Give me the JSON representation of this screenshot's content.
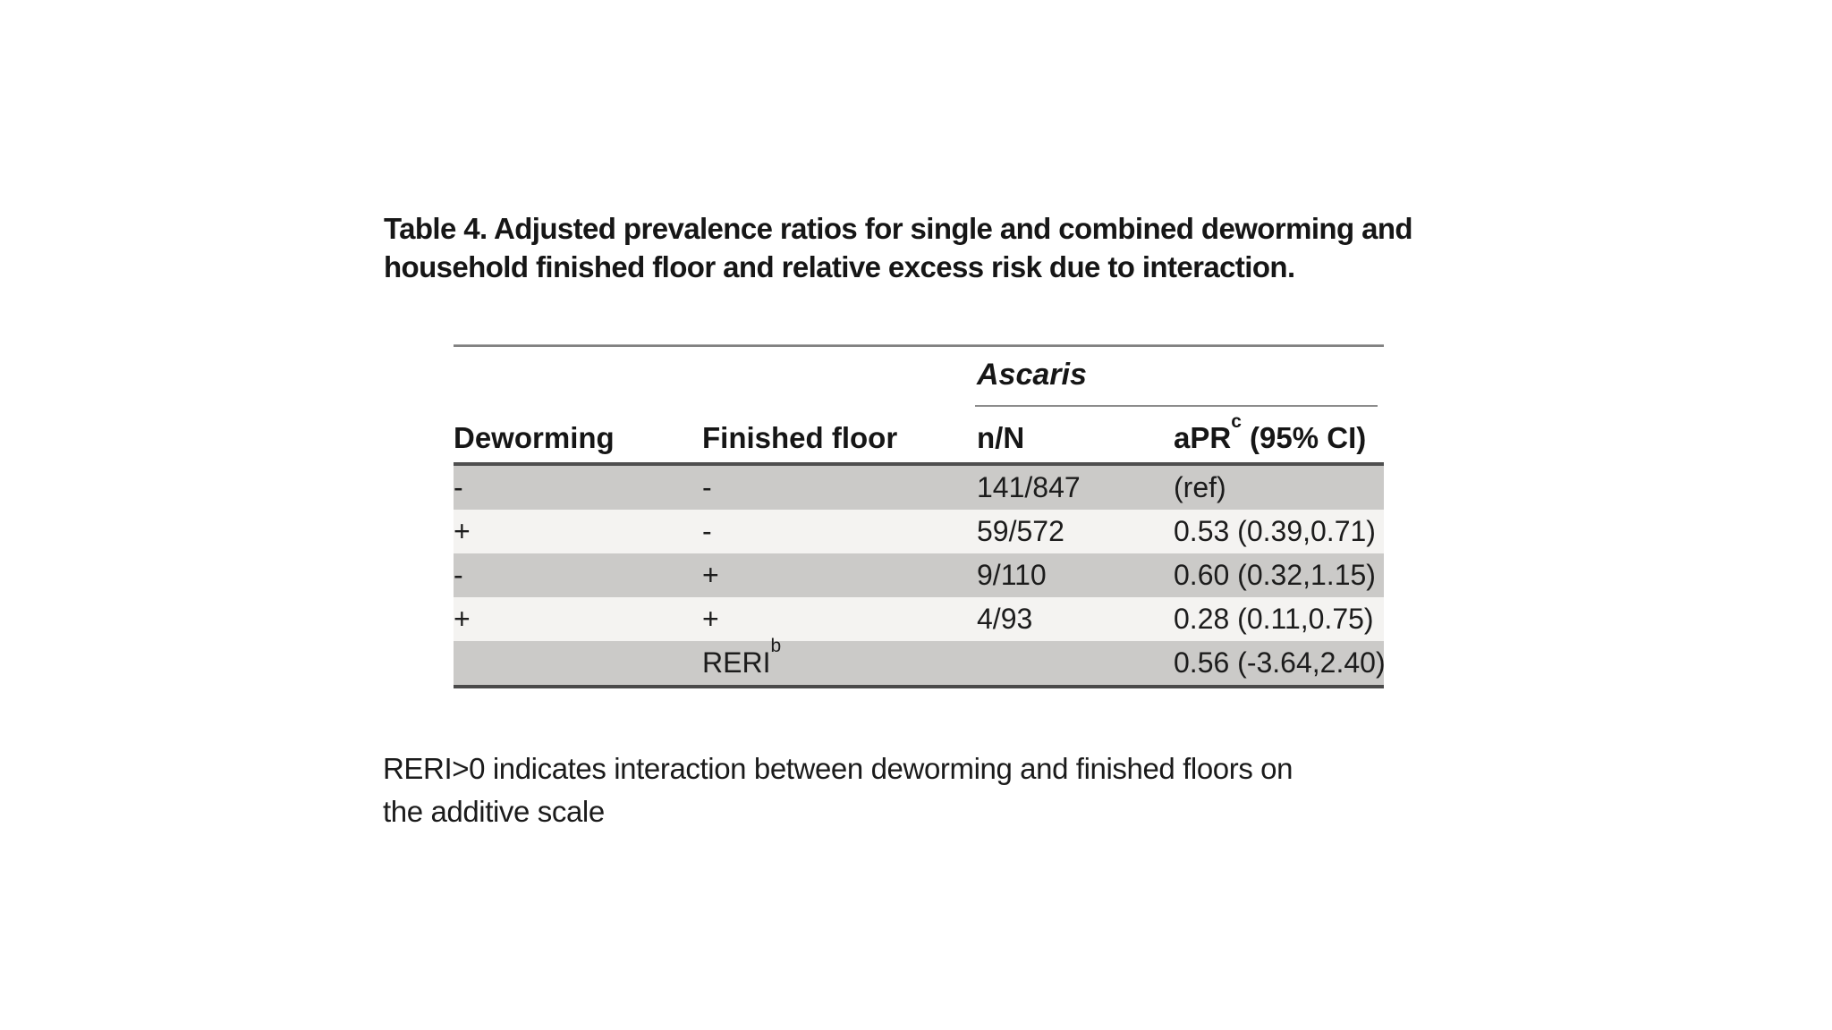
{
  "title": {
    "lines": [
      "Table 4. Adjusted prevalence ratios for single and combined deworming and",
      "household finished floor and relative excess risk due to interaction."
    ]
  },
  "table": {
    "spanner": "Ascaris",
    "headers": [
      "Deworming",
      "Finished floor",
      "n/N"
    ],
    "header4": {
      "main": "aPR",
      "sup": "c",
      "rest": " (95% CI)"
    },
    "rows": [
      {
        "deworming": "-",
        "finished_floor": "-",
        "n_N": "141/847",
        "aPR_95CI": "(ref)"
      },
      {
        "deworming": "+",
        "finished_floor": "-",
        "n_N": "59/572",
        "aPR_95CI": "0.53 (0.39,0.71)"
      },
      {
        "deworming": "-",
        "finished_floor": "+",
        "n_N": "9/110",
        "aPR_95CI": "0.60 (0.32,1.15)"
      },
      {
        "deworming": "+",
        "finished_floor": "+",
        "n_N": "4/93",
        "aPR_95CI": "0.28 (0.11,0.75)"
      }
    ],
    "reri_row": {
      "deworming": "",
      "label_main": "RERI",
      "label_sup": "b",
      "n_N": "",
      "aPR_95CI": "0.56 (-3.64,2.40)"
    }
  },
  "footnote": {
    "lines": [
      "RERI>0 indicates interaction between deworming and finished floors on",
      "the additive scale"
    ]
  },
  "colors": {
    "background": "#ffffff",
    "row_shaded": "#cbcac8",
    "row_light": "#f4f3f1",
    "rule_dark": "#4f4f4f",
    "rule_light": "#8c8c8c",
    "text": "#1a1a1a"
  }
}
